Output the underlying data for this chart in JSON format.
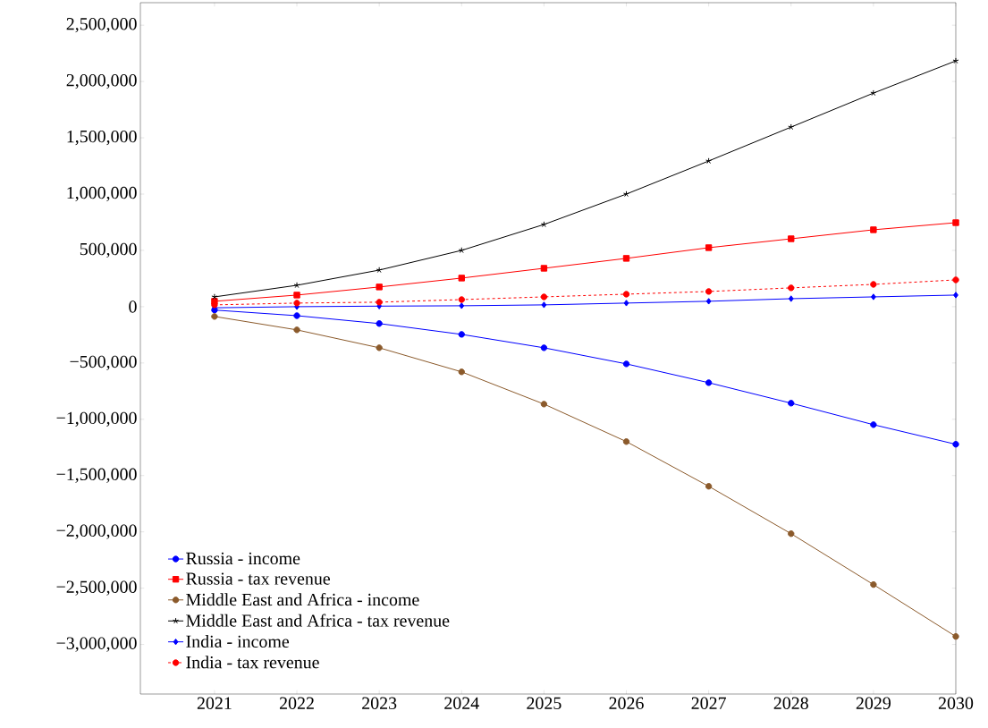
{
  "chart_data": {
    "type": "line",
    "x": [
      2021,
      2022,
      2023,
      2024,
      2025,
      2026,
      2027,
      2028,
      2029,
      2030
    ],
    "xlim": [
      2020.1,
      2030
    ],
    "xticks": [
      2021,
      2022,
      2023,
      2024,
      2025,
      2026,
      2027,
      2028,
      2029,
      2030
    ],
    "ylim": [
      -3440000,
      2700000
    ],
    "yticks": [
      {
        "value": -3000000,
        "label": "−3,000,000"
      },
      {
        "value": -2500000,
        "label": "−2,500,000"
      },
      {
        "value": -2000000,
        "label": "−2,000,000"
      },
      {
        "value": -1500000,
        "label": "−1,500,000"
      },
      {
        "value": -1000000,
        "label": "−1,000,000"
      },
      {
        "value": -500000,
        "label": "−500,000"
      },
      0,
      {
        "value": 500000,
        "label": "500,000"
      },
      {
        "value": 1000000,
        "label": "1,000,000"
      },
      {
        "value": 1500000,
        "label": "1,500,000"
      },
      {
        "value": 2000000,
        "label": "2,000,000"
      },
      {
        "value": 2500000,
        "label": "2,500,000"
      }
    ],
    "legend": "bottom left",
    "series": [
      {
        "name": "Russia - income",
        "color": "#0000ff",
        "marker": "circle",
        "line_style": "solid",
        "values": [
          -30000,
          -80000,
          -150000,
          -246000,
          -365000,
          -508000,
          -675000,
          -857000,
          -1048000,
          -1222000
        ]
      },
      {
        "name": "Russia - tax revenue",
        "color": "#ff0000",
        "marker": "square",
        "line_style": "solid",
        "values": [
          48000,
          103000,
          175000,
          254000,
          341000,
          429000,
          524000,
          603000,
          683000,
          746000
        ]
      },
      {
        "name": "Middle East and Africa - income",
        "color": "#8b5a2b",
        "marker": "circle",
        "line_style": "solid",
        "values": [
          -87000,
          -206000,
          -365000,
          -579000,
          -865000,
          -1198000,
          -1595000,
          -2016000,
          -2468000,
          -2929000
        ]
      },
      {
        "name": "Middle East and Africa - tax revenue",
        "color": "#000000",
        "marker": "cross",
        "line_style": "solid",
        "values": [
          87000,
          190000,
          325000,
          500000,
          730000,
          1000000,
          1294000,
          1595000,
          1897000,
          2183000
        ]
      },
      {
        "name": "India - income",
        "color": "#0000ff",
        "marker": "diamond",
        "line_style": "solid",
        "values": [
          -10000,
          0,
          5000,
          8000,
          16000,
          32000,
          48000,
          71000,
          87000,
          103000
        ]
      },
      {
        "name": "India - tax revenue",
        "color": "#ff0000",
        "marker": "circle",
        "line_style": "dashed",
        "values": [
          16000,
          32000,
          40000,
          63000,
          87000,
          111000,
          135000,
          167000,
          198000,
          238000
        ]
      }
    ]
  }
}
